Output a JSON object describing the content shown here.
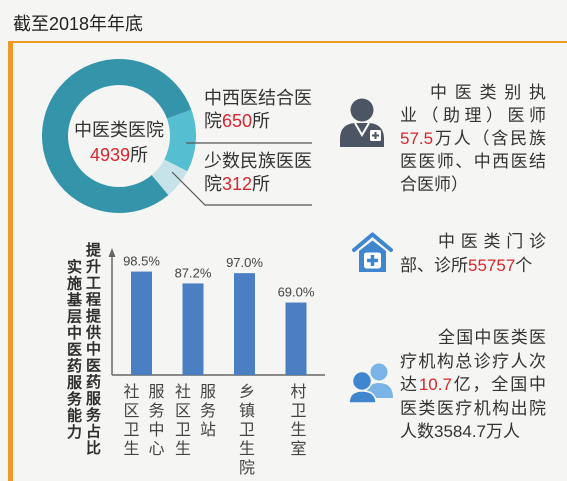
{
  "title": "截至2018年年底",
  "colors": {
    "frame_accent": "#ec9b2b",
    "background": "#f5f5f3",
    "highlight_number": "#d7262d",
    "donut_remainder": "#3494aa",
    "bar": "#4b7fc3",
    "icon_dark": "#4b5564",
    "icon_blue": "#3f86cf",
    "icon_blue_light": "#7ab3e6"
  },
  "chart_data": [
    {
      "type": "pie",
      "style": "donut",
      "center_label": "中医类医院",
      "total": 4939,
      "unit": "所",
      "slices": [
        {
          "label": "中西医结合医院",
          "value": 650,
          "color": "#56bed1"
        },
        {
          "label": "少数民族医医院",
          "value": 312,
          "color": "#c6e3ea"
        }
      ]
    },
    {
      "type": "bar",
      "title_lines": [
        "实施基层中医药服务能力",
        "提升工程提供中医药服务占比"
      ],
      "categories": [
        "社区卫生服务中心",
        "社区卫生服务站",
        "乡镇卫生院",
        "村卫生室"
      ],
      "values": [
        98.5,
        87.2,
        97.0,
        69.0
      ],
      "value_suffix": "%",
      "ylim": [
        0,
        100
      ],
      "grid": false
    }
  ],
  "stats": [
    {
      "icon": "doctor-icon",
      "lines": [
        [
          {
            "text": "中医类别执"
          }
        ],
        [
          {
            "text": "业（助理）医师"
          }
        ],
        [
          {
            "text": "57.5",
            "hl": true
          },
          {
            "text": "万人（含民族"
          }
        ],
        [
          {
            "text": "医医师、中西医结"
          }
        ],
        [
          {
            "text": "合医师）"
          }
        ]
      ]
    },
    {
      "icon": "clinic-house-icon",
      "lines": [
        [
          {
            "text": "中医类门诊"
          }
        ],
        [
          {
            "text": "部、诊所"
          },
          {
            "text": "55757",
            "hl": true
          },
          {
            "text": "个"
          }
        ]
      ]
    },
    {
      "icon": "people-group-icon",
      "lines": [
        [
          {
            "text": "全国中医类医"
          }
        ],
        [
          {
            "text": "疗机构总诊疗人次"
          }
        ],
        [
          {
            "text": "达"
          },
          {
            "text": "10.7",
            "hl": true
          },
          {
            "text": "亿，全国中"
          }
        ],
        [
          {
            "text": "医类医疗机构出院"
          }
        ],
        [
          {
            "text": "人数3584.7万人"
          }
        ]
      ]
    }
  ]
}
